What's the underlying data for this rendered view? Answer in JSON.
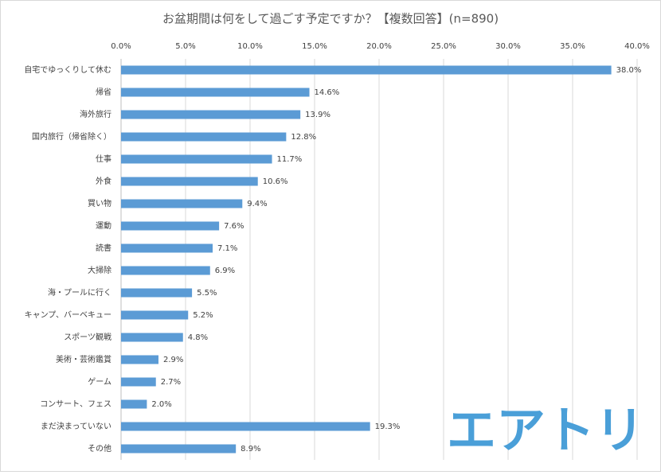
{
  "chart_data": {
    "type": "bar",
    "orientation": "horizontal",
    "title": "お盆期間は何をして過ごす予定ですか？【複数回答】(n=890)",
    "categories": [
      "自宅でゆっくりして休む",
      "帰省",
      "海外旅行",
      "国内旅行（帰省除く）",
      "仕事",
      "外食",
      "買い物",
      "運動",
      "読書",
      "大掃除",
      "海・プールに行く",
      "キャンプ、バーベキュー",
      "スポーツ観戦",
      "美術・芸術鑑賞",
      "ゲーム",
      "コンサート、フェス",
      "まだ決まっていない",
      "その他"
    ],
    "values": [
      38.0,
      14.6,
      13.9,
      12.8,
      11.7,
      10.6,
      9.4,
      7.6,
      7.1,
      6.9,
      5.5,
      5.2,
      4.8,
      2.9,
      2.7,
      2.0,
      19.3,
      8.9
    ],
    "value_labels": [
      "38.0%",
      "14.6%",
      "13.9%",
      "12.8%",
      "11.7%",
      "10.6%",
      "9.4%",
      "7.6%",
      "7.1%",
      "6.9%",
      "5.5%",
      "5.2%",
      "4.8%",
      "2.9%",
      "2.7%",
      "2.0%",
      "19.3%",
      "8.9%"
    ],
    "color": "#5b9bd5",
    "xlim": [
      0,
      40
    ],
    "xticks": [
      {
        "value": 0,
        "label": "0.0%"
      },
      {
        "value": 5,
        "label": "5.0%"
      },
      {
        "value": 10,
        "label": "10.0%"
      },
      {
        "value": 15,
        "label": "15.0%"
      },
      {
        "value": 20,
        "label": "20.0%"
      },
      {
        "value": 25,
        "label": "25.0%"
      },
      {
        "value": 30,
        "label": "30.0%"
      },
      {
        "value": 35,
        "label": "35.0%"
      },
      {
        "value": 40,
        "label": "40.0%"
      }
    ],
    "grid": true,
    "logo": "エアトリ"
  }
}
